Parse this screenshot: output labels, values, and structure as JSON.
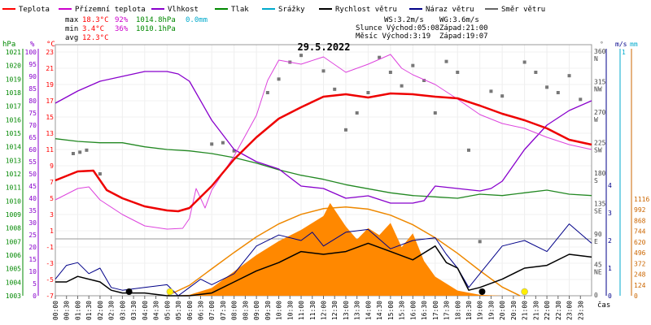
{
  "chart_data": {
    "type": "line",
    "title": "29.5.2022",
    "legend": [
      {
        "name": "Teplota",
        "color": "#ff0000"
      },
      {
        "name": "Přízemní teplota",
        "color": "#cc00cc"
      },
      {
        "name": "Vlhkost",
        "color": "#8800cc"
      },
      {
        "name": "Tlak",
        "color": "#008800"
      },
      {
        "name": "Srážky",
        "color": "#00aacc"
      },
      {
        "name": "Rychlost větru",
        "color": "#000000"
      },
      {
        "name": "Náraz větru",
        "color": "#000088"
      },
      {
        "name": "Směr větru",
        "color": "#666666"
      }
    ],
    "stats": {
      "max": {
        "label": "max",
        "temp": "18.3°C",
        "hum": "92%",
        "press": "1014.8hPa",
        "rain": "0.0mm"
      },
      "min": {
        "label": "min",
        "temp": "3.4°C",
        "hum": "36%",
        "press": "1010.1hPa"
      },
      "avg": {
        "label": "avg",
        "temp": "12.3°C"
      }
    },
    "info": {
      "ws": "WS:3.2m/s",
      "wg": "WG:3.6m/s",
      "slunce": "Slunce Východ:05:08",
      "slunce_zapad": "Západ:21:00",
      "mesic": "Měsíc  Východ:3:19",
      "mesic_zapad": "Západ:19:07"
    },
    "axes": {
      "hpa": {
        "unit": "hPa",
        "ticks": [
          "1021",
          "1020",
          "1019",
          "1018",
          "1017",
          "1016",
          "1015",
          "1014",
          "1013",
          "1012",
          "1011",
          "1010",
          "1009",
          "1008",
          "1007",
          "1006",
          "1005",
          "1004",
          "1003"
        ],
        "range": [
          1003,
          1021.5
        ]
      },
      "hum": {
        "unit": "%",
        "ticks": [
          "100",
          "95",
          "90",
          "85",
          "80",
          "75",
          "70",
          "65",
          "60",
          "55",
          "50",
          "45",
          "40",
          "35",
          "30",
          "25",
          "20",
          "15",
          "10",
          "5",
          "0"
        ],
        "range": [
          0,
          100
        ]
      },
      "temp": {
        "unit": "°C",
        "ticks": [
          "23",
          "21",
          "19",
          "17",
          "15",
          "13",
          "11",
          "9",
          "7",
          "5",
          "3",
          "1",
          "-1",
          "-3",
          "-5",
          "-7"
        ],
        "range": [
          -7,
          23
        ]
      },
      "dir": {
        "unit": "°",
        "ticks": [
          {
            "v": "360",
            "d": "N"
          },
          {
            "v": "315",
            "d": "NW"
          },
          {
            "v": "270",
            "d": "W"
          },
          {
            "v": "225",
            "d": "SW"
          },
          {
            "v": "180",
            "d": "S"
          },
          {
            "v": "135",
            "d": "SE"
          },
          {
            "v": "90",
            "d": "E"
          },
          {
            "v": "45",
            "d": "NE"
          },
          {
            "v": "0",
            "d": ""
          }
        ]
      },
      "wind": {
        "unit": "m/s",
        "ticks": [
          "4",
          "3",
          "2",
          "1",
          "0"
        ],
        "range": [
          0,
          4.4
        ]
      },
      "rain": {
        "unit": "mm",
        "ticks": [
          "1"
        ]
      },
      "solar": {
        "ticks": [
          "1116",
          "992",
          "868",
          "744",
          "620",
          "496",
          "372",
          "248",
          "124",
          "0"
        ],
        "range": [
          0,
          1116
        ]
      },
      "time_label": "čas",
      "x_ticks": [
        "00:00",
        "00:30",
        "01:00",
        "01:30",
        "02:00",
        "02:30",
        "03:00",
        "03:30",
        "04:00",
        "04:30",
        "05:00",
        "05:30",
        "06:00",
        "06:30",
        "07:00",
        "07:30",
        "08:00",
        "08:30",
        "09:00",
        "09:30",
        "10:00",
        "10:30",
        "11:00",
        "11:30",
        "12:00",
        "12:30",
        "13:00",
        "13:30",
        "14:00",
        "14:30",
        "15:00",
        "15:30",
        "16:00",
        "16:30",
        "17:00",
        "17:30",
        "18:00",
        "18:30",
        "19:00",
        "19:30",
        "20:00",
        "20:30",
        "21:00",
        "21:30",
        "22:00",
        "22:30",
        "23:00",
        "23:30"
      ]
    },
    "x_unit": "hour",
    "series": [
      {
        "name": "Teplota",
        "axis": "temp",
        "points": [
          [
            0,
            7.2
          ],
          [
            1,
            8.3
          ],
          [
            1.7,
            8.4
          ],
          [
            2.3,
            6.0
          ],
          [
            3,
            5.0
          ],
          [
            4,
            4.0
          ],
          [
            5,
            3.5
          ],
          [
            5.5,
            3.4
          ],
          [
            6,
            3.8
          ],
          [
            7,
            6.5
          ],
          [
            8,
            9.8
          ],
          [
            9,
            12.5
          ],
          [
            10,
            14.8
          ],
          [
            11,
            16.2
          ],
          [
            12,
            17.5
          ],
          [
            13,
            17.8
          ],
          [
            14,
            17.4
          ],
          [
            15,
            17.9
          ],
          [
            16,
            17.8
          ],
          [
            17,
            17.5
          ],
          [
            18,
            17.3
          ],
          [
            19,
            16.4
          ],
          [
            20,
            15.4
          ],
          [
            21,
            14.6
          ],
          [
            22,
            13.6
          ],
          [
            23,
            12.2
          ],
          [
            24,
            11.6
          ]
        ]
      },
      {
        "name": "Přízemní teplota",
        "axis": "temp",
        "points": [
          [
            0,
            4.8
          ],
          [
            1,
            6.2
          ],
          [
            1.5,
            6.4
          ],
          [
            2,
            4.8
          ],
          [
            3,
            3.0
          ],
          [
            4,
            1.6
          ],
          [
            5,
            1.2
          ],
          [
            5.7,
            1.3
          ],
          [
            6,
            2.5
          ],
          [
            6.3,
            6.2
          ],
          [
            6.7,
            3.8
          ],
          [
            7,
            6.0
          ],
          [
            8,
            10.2
          ],
          [
            9,
            15.2
          ],
          [
            9.5,
            19.5
          ],
          [
            10,
            22.0
          ],
          [
            11,
            21.5
          ],
          [
            12,
            22.4
          ],
          [
            13,
            20.5
          ],
          [
            14,
            21.5
          ],
          [
            15,
            22.7
          ],
          [
            15.5,
            21.0
          ],
          [
            16,
            20.2
          ],
          [
            17,
            19.0
          ],
          [
            18,
            17.2
          ],
          [
            19,
            15.3
          ],
          [
            20,
            14.2
          ],
          [
            21,
            13.6
          ],
          [
            22,
            12.5
          ],
          [
            23,
            11.6
          ],
          [
            24,
            11.0
          ]
        ]
      },
      {
        "name": "Vlhkost",
        "axis": "hum",
        "points": [
          [
            0,
            79
          ],
          [
            1,
            84
          ],
          [
            2,
            88
          ],
          [
            3,
            90
          ],
          [
            4,
            92
          ],
          [
            5,
            92
          ],
          [
            5.5,
            91
          ],
          [
            6,
            88
          ],
          [
            7,
            72
          ],
          [
            8,
            60
          ],
          [
            9,
            55
          ],
          [
            10,
            52
          ],
          [
            11,
            45
          ],
          [
            12,
            44
          ],
          [
            13,
            40
          ],
          [
            14,
            41
          ],
          [
            15,
            38
          ],
          [
            16,
            38
          ],
          [
            16.5,
            39
          ],
          [
            17,
            45
          ],
          [
            18,
            44
          ],
          [
            19,
            43
          ],
          [
            19.5,
            44
          ],
          [
            20,
            47
          ],
          [
            21,
            60
          ],
          [
            22,
            70
          ],
          [
            23,
            76
          ],
          [
            24,
            80
          ]
        ]
      },
      {
        "name": "Tlak",
        "axis": "hpa",
        "points": [
          [
            0,
            1014.6
          ],
          [
            1,
            1014.4
          ],
          [
            2,
            1014.3
          ],
          [
            3,
            1014.3
          ],
          [
            4,
            1014.0
          ],
          [
            5,
            1013.8
          ],
          [
            6,
            1013.7
          ],
          [
            7,
            1013.5
          ],
          [
            8,
            1013.2
          ],
          [
            9,
            1012.8
          ],
          [
            10,
            1012.3
          ],
          [
            11,
            1011.9
          ],
          [
            12,
            1011.6
          ],
          [
            13,
            1011.2
          ],
          [
            14,
            1010.9
          ],
          [
            15,
            1010.6
          ],
          [
            16,
            1010.4
          ],
          [
            17,
            1010.3
          ],
          [
            18,
            1010.2
          ],
          [
            19,
            1010.5
          ],
          [
            20,
            1010.4
          ],
          [
            21,
            1010.6
          ],
          [
            22,
            1010.8
          ],
          [
            23,
            1010.5
          ],
          [
            24,
            1010.4
          ]
        ]
      },
      {
        "name": "Solar",
        "axis": "solar",
        "points": [
          [
            5,
            0
          ],
          [
            6,
            10
          ],
          [
            7,
            90
          ],
          [
            8,
            280
          ],
          [
            9,
            470
          ],
          [
            10,
            630
          ],
          [
            11,
            760
          ],
          [
            12,
            920
          ],
          [
            12.3,
            1070
          ],
          [
            13,
            800
          ],
          [
            13.5,
            650
          ],
          [
            14,
            780
          ],
          [
            14.5,
            700
          ],
          [
            15,
            840
          ],
          [
            15.5,
            560
          ],
          [
            16,
            720
          ],
          [
            16.5,
            400
          ],
          [
            17,
            220
          ],
          [
            18,
            60
          ],
          [
            19,
            10
          ],
          [
            20,
            0
          ]
        ]
      },
      {
        "name": "Solar theoretical",
        "axis": "solar",
        "points": [
          [
            5,
            0
          ],
          [
            6,
            120
          ],
          [
            7,
            310
          ],
          [
            8,
            500
          ],
          [
            9,
            680
          ],
          [
            10,
            830
          ],
          [
            11,
            940
          ],
          [
            12,
            1005
          ],
          [
            13,
            1025
          ],
          [
            14,
            1000
          ],
          [
            15,
            930
          ],
          [
            16,
            820
          ],
          [
            17,
            670
          ],
          [
            18,
            490
          ],
          [
            19,
            290
          ],
          [
            20,
            100
          ],
          [
            20.8,
            0
          ]
        ]
      },
      {
        "name": "Rychlost větru",
        "axis": "wind",
        "points": [
          [
            0,
            0.5
          ],
          [
            0.5,
            0.5
          ],
          [
            1,
            0.7
          ],
          [
            2,
            0.5
          ],
          [
            2.5,
            0.2
          ],
          [
            3,
            0.1
          ],
          [
            4,
            0.1
          ],
          [
            5,
            0
          ],
          [
            6,
            0
          ],
          [
            7,
            0.1
          ],
          [
            8,
            0.5
          ],
          [
            9,
            0.9
          ],
          [
            10,
            1.2
          ],
          [
            11,
            1.6
          ],
          [
            12,
            1.5
          ],
          [
            13,
            1.6
          ],
          [
            14,
            1.9
          ],
          [
            15,
            1.6
          ],
          [
            16,
            1.3
          ],
          [
            17,
            1.8
          ],
          [
            17.5,
            1.2
          ],
          [
            18,
            1.0
          ],
          [
            18.5,
            0.2
          ],
          [
            19,
            0.3
          ],
          [
            20,
            0.6
          ],
          [
            21,
            1.0
          ],
          [
            22,
            1.1
          ],
          [
            23,
            1.5
          ],
          [
            24,
            1.4
          ]
        ]
      },
      {
        "name": "Náraz větru",
        "axis": "wind",
        "points": [
          [
            0,
            0.6
          ],
          [
            0.5,
            1.1
          ],
          [
            1,
            1.2
          ],
          [
            1.5,
            0.8
          ],
          [
            2,
            1.0
          ],
          [
            2.5,
            0.3
          ],
          [
            3,
            0.2
          ],
          [
            4,
            0.3
          ],
          [
            5,
            0.4
          ],
          [
            5.5,
            0
          ],
          [
            6,
            0.3
          ],
          [
            6.5,
            0.6
          ],
          [
            7,
            0.4
          ],
          [
            8,
            0.8
          ],
          [
            8.5,
            1.3
          ],
          [
            9,
            1.8
          ],
          [
            10,
            2.2
          ],
          [
            11,
            2.0
          ],
          [
            11.5,
            2.3
          ],
          [
            12,
            1.8
          ],
          [
            13,
            2.3
          ],
          [
            14,
            2.4
          ],
          [
            15,
            1.7
          ],
          [
            16,
            2.0
          ],
          [
            17,
            2.1
          ],
          [
            17.5,
            1.5
          ],
          [
            18,
            1.0
          ],
          [
            18.5,
            0.3
          ],
          [
            19,
            0.8
          ],
          [
            20,
            1.8
          ],
          [
            21,
            2.0
          ],
          [
            22,
            1.6
          ],
          [
            23,
            2.6
          ],
          [
            24,
            1.9
          ]
        ]
      }
    ],
    "wind_direction_points": [
      [
        0.8,
        210
      ],
      [
        1.1,
        212
      ],
      [
        1.4,
        215
      ],
      [
        2,
        180
      ],
      [
        7,
        224
      ],
      [
        7.5,
        226
      ],
      [
        8,
        214
      ],
      [
        9.5,
        300
      ],
      [
        10,
        320
      ],
      [
        10.5,
        345
      ],
      [
        11,
        355
      ],
      [
        12,
        332
      ],
      [
        12.5,
        305
      ],
      [
        13,
        245
      ],
      [
        13.5,
        270
      ],
      [
        14,
        300
      ],
      [
        14.5,
        352
      ],
      [
        15,
        330
      ],
      [
        15.5,
        310
      ],
      [
        16,
        340
      ],
      [
        16.5,
        318
      ],
      [
        17,
        270
      ],
      [
        17.5,
        346
      ],
      [
        18,
        330
      ],
      [
        18.5,
        215
      ],
      [
        19,
        80
      ],
      [
        19.5,
        302
      ],
      [
        20,
        295
      ],
      [
        21,
        345
      ],
      [
        21.5,
        330
      ],
      [
        22,
        308
      ],
      [
        22.5,
        300
      ],
      [
        23,
        325
      ],
      [
        23.5,
        290
      ]
    ],
    "markers": {
      "moon": [
        {
          "t": 3.3
        },
        {
          "t": 19.1
        }
      ],
      "sun": [
        {
          "t": 5.13
        },
        {
          "t": 21.0
        }
      ]
    }
  }
}
